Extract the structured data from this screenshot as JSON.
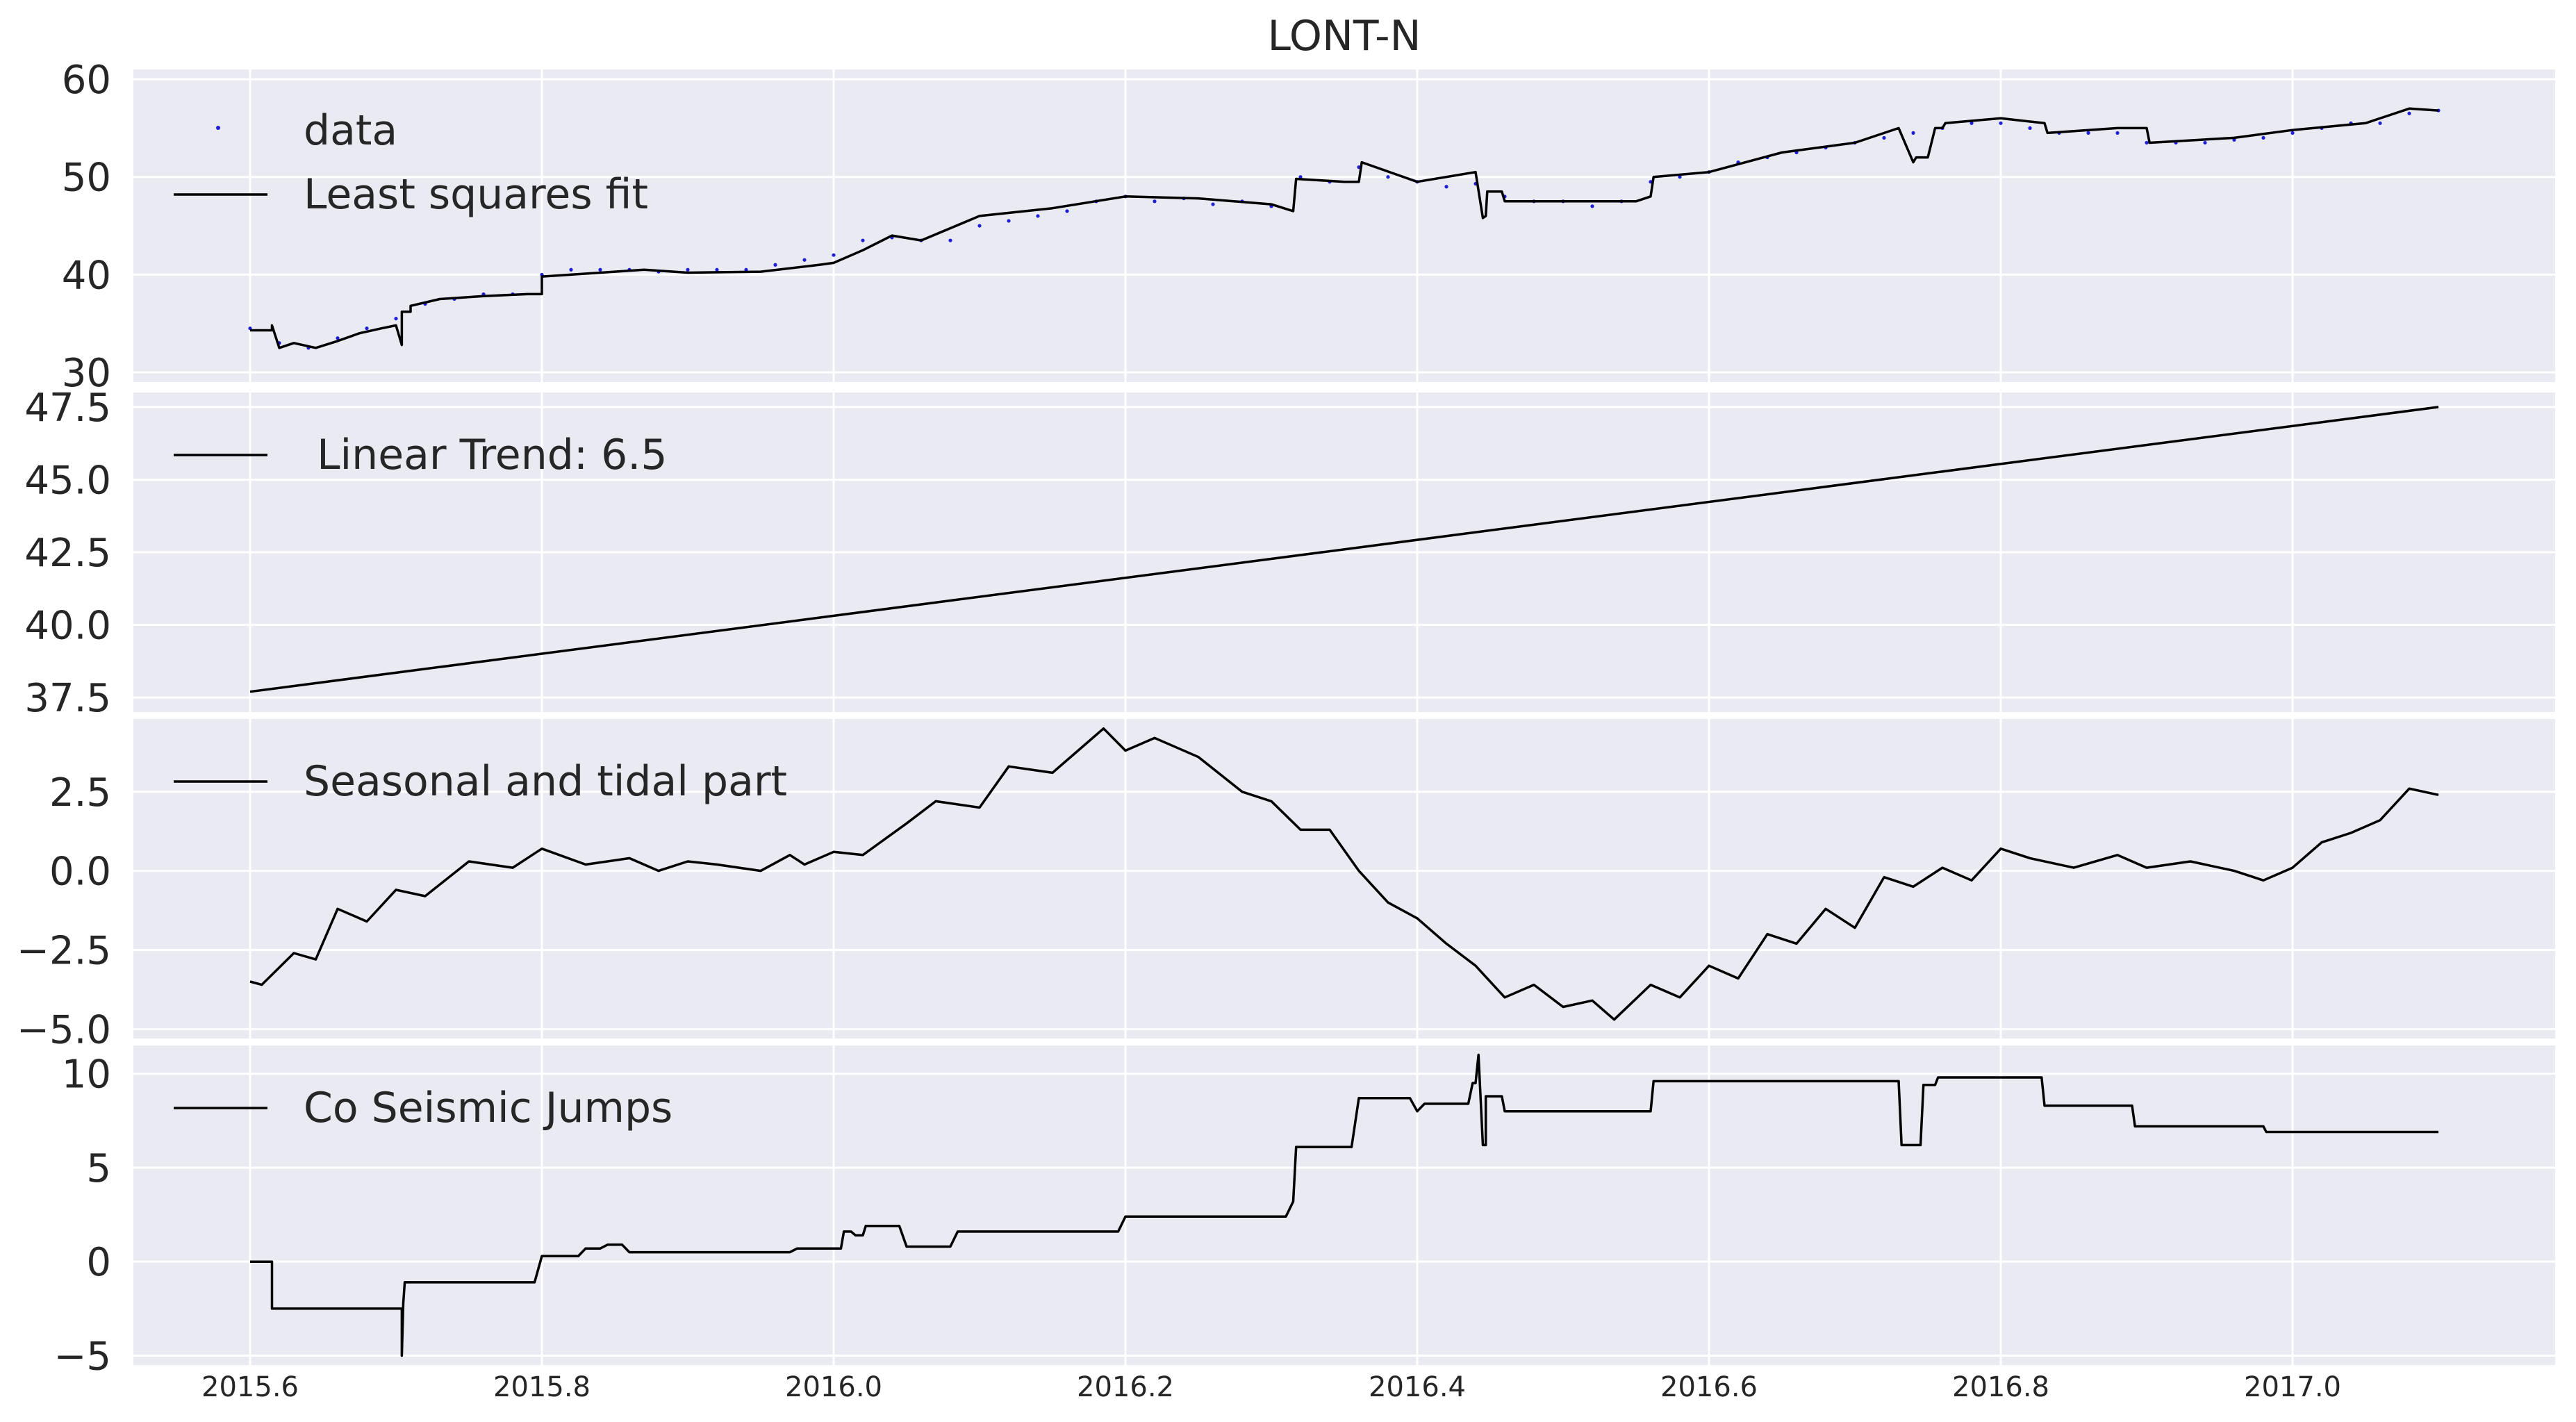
{
  "title": "LONT-N",
  "colors": {
    "panel_bg": "#eaeaf2",
    "grid": "#ffffff",
    "fit_line": "#000000",
    "data_points": "#1f1fd6",
    "text": "#262626"
  },
  "x_axis": {
    "range": [
      2015.52,
      2017.18
    ],
    "ticks": [
      2015.6,
      2015.8,
      2016.0,
      2016.2,
      2016.4,
      2016.6,
      2016.8,
      2017.0
    ],
    "tick_labels": [
      "2015.6",
      "2015.8",
      "2016.0",
      "2016.2",
      "2016.4",
      "2016.6",
      "2016.8",
      "2017.0"
    ]
  },
  "chart_data": [
    {
      "type": "scatter",
      "panel": "data",
      "ylim": [
        29,
        61
      ],
      "yticks": [
        30,
        40,
        50,
        60
      ],
      "ytick_labels": [
        "30",
        "40",
        "50",
        "60"
      ],
      "grid": true,
      "legend_position": "top-left",
      "series": [
        {
          "name": "data",
          "style": "points",
          "color": "#1f1fd6",
          "x": [
            2015.6,
            2015.62,
            2015.64,
            2015.66,
            2015.68,
            2015.7,
            2015.72,
            2015.74,
            2015.76,
            2015.78,
            2015.8,
            2015.82,
            2015.84,
            2015.86,
            2015.88,
            2015.9,
            2015.92,
            2015.94,
            2015.96,
            2015.98,
            2016.0,
            2016.02,
            2016.04,
            2016.06,
            2016.08,
            2016.1,
            2016.12,
            2016.14,
            2016.16,
            2016.18,
            2016.2,
            2016.22,
            2016.24,
            2016.26,
            2016.28,
            2016.3,
            2016.32,
            2016.34,
            2016.36,
            2016.38,
            2016.4,
            2016.42,
            2016.44,
            2016.46,
            2016.48,
            2016.5,
            2016.52,
            2016.54,
            2016.56,
            2016.58,
            2016.6,
            2016.62,
            2016.64,
            2016.66,
            2016.68,
            2016.7,
            2016.72,
            2016.74,
            2016.76,
            2016.78,
            2016.8,
            2016.82,
            2016.84,
            2016.86,
            2016.88,
            2016.9,
            2016.92,
            2016.94,
            2016.96,
            2016.98,
            2017.0,
            2017.02,
            2017.04,
            2017.06,
            2017.08,
            2017.1
          ],
          "y": [
            34.5,
            33,
            32.5,
            33.5,
            34.5,
            35.5,
            37,
            37.5,
            38,
            38,
            40,
            40.5,
            40.5,
            40.5,
            40.3,
            40.5,
            40.5,
            40.5,
            41,
            41.5,
            42,
            43.5,
            43.8,
            43.5,
            43.5,
            45,
            45.5,
            46,
            46.5,
            47.5,
            48,
            47.5,
            47.8,
            47.2,
            47.5,
            47,
            50,
            49.5,
            51,
            50,
            49.5,
            49,
            49.3,
            48,
            47.5,
            47.5,
            47,
            47.5,
            49.5,
            50,
            50.5,
            51.5,
            52,
            52.5,
            53,
            53.5,
            54,
            54.5,
            55,
            55.5,
            55.5,
            55,
            54.5,
            54.5,
            54.5,
            53.5,
            53.5,
            53.5,
            53.8,
            54,
            54.5,
            55,
            55.5,
            55.5,
            56.5,
            56.8
          ]
        },
        {
          "name": "Least squares fit",
          "style": "line",
          "color": "#000000",
          "x": [
            2015.6,
            2015.615,
            2015.615,
            2015.62,
            2015.63,
            2015.645,
            2015.66,
            2015.675,
            2015.69,
            2015.7,
            2015.704,
            2015.704,
            2015.71,
            2015.71,
            2015.73,
            2015.76,
            2015.79,
            2015.8,
            2015.8,
            2015.85,
            2015.87,
            2015.9,
            2015.95,
            2015.99,
            2016.0,
            2016.02,
            2016.04,
            2016.06,
            2016.1,
            2016.15,
            2016.2,
            2016.25,
            2016.3,
            2016.315,
            2016.317,
            2016.35,
            2016.36,
            2016.362,
            2016.4,
            2016.44,
            2016.445,
            2016.447,
            2016.448,
            2016.458,
            2016.46,
            2016.5,
            2016.55,
            2016.56,
            2016.562,
            2016.6,
            2016.65,
            2016.7,
            2016.73,
            2016.74,
            2016.742,
            2016.75,
            2016.755,
            2016.76,
            2016.762,
            2016.8,
            2016.83,
            2016.832,
            2016.88,
            2016.9,
            2016.902,
            2016.96,
            2017.0,
            2017.05,
            2017.08,
            2017.1
          ],
          "y": [
            34.3,
            34.3,
            34.8,
            32.5,
            33,
            32.5,
            33.2,
            34,
            34.5,
            34.8,
            32.8,
            36.2,
            36.2,
            36.8,
            37.5,
            37.8,
            38,
            38,
            39.8,
            40.3,
            40.5,
            40.2,
            40.3,
            41,
            41.2,
            42.5,
            44,
            43.5,
            46,
            46.8,
            48,
            47.8,
            47.2,
            46.5,
            49.8,
            49.5,
            49.5,
            51.5,
            49.5,
            50.5,
            45.8,
            46,
            48.5,
            48.5,
            47.5,
            47.5,
            47.5,
            48,
            50,
            50.5,
            52.5,
            53.5,
            55,
            51.5,
            52,
            52,
            55,
            55,
            55.5,
            56,
            55.5,
            54.5,
            55,
            55,
            53.5,
            54,
            54.8,
            55.5,
            57,
            56.8
          ]
        }
      ]
    },
    {
      "type": "line",
      "panel": "trend",
      "ylim": [
        37,
        48
      ],
      "yticks": [
        37.5,
        40.0,
        42.5,
        45.0,
        47.5
      ],
      "ytick_labels": [
        "37.5",
        "40.0",
        "42.5",
        "45.0",
        "47.5"
      ],
      "grid": true,
      "legend_position": "top-left",
      "series": [
        {
          "name": " Linear Trend: 6.5",
          "x": [
            2015.6,
            2017.1
          ],
          "y": [
            37.7,
            47.5
          ]
        }
      ]
    },
    {
      "type": "line",
      "panel": "seasonal",
      "ylim": [
        -5.3,
        4.8
      ],
      "yticks": [
        -5.0,
        -2.5,
        0.0,
        2.5
      ],
      "ytick_labels": [
        "−5.0",
        "−2.5",
        "0.0",
        "2.5"
      ],
      "grid": true,
      "legend_position": "top-left",
      "series": [
        {
          "name": "Seasonal and tidal part",
          "x": [
            2015.6,
            2015.608,
            2015.63,
            2015.645,
            2015.66,
            2015.68,
            2015.7,
            2015.72,
            2015.75,
            2015.78,
            2015.8,
            2015.83,
            2015.86,
            2015.88,
            2015.9,
            2015.92,
            2015.95,
            2015.97,
            2015.98,
            2016.0,
            2016.02,
            2016.05,
            2016.07,
            2016.1,
            2016.12,
            2016.15,
            2016.17,
            2016.185,
            2016.2,
            2016.22,
            2016.25,
            2016.28,
            2016.3,
            2016.32,
            2016.34,
            2016.36,
            2016.38,
            2016.4,
            2016.42,
            2016.44,
            2016.46,
            2016.48,
            2016.5,
            2016.52,
            2016.535,
            2016.56,
            2016.58,
            2016.6,
            2016.62,
            2016.64,
            2016.66,
            2016.68,
            2016.7,
            2016.72,
            2016.74,
            2016.76,
            2016.78,
            2016.8,
            2016.82,
            2016.85,
            2016.88,
            2016.9,
            2016.93,
            2016.96,
            2016.98,
            2017.0,
            2017.02,
            2017.04,
            2017.06,
            2017.08,
            2017.1
          ],
          "y": [
            -3.5,
            -3.6,
            -2.6,
            -2.8,
            -1.2,
            -1.6,
            -0.6,
            -0.8,
            0.3,
            0.1,
            0.7,
            0.2,
            0.4,
            0.0,
            0.3,
            0.2,
            0.0,
            0.5,
            0.2,
            0.6,
            0.5,
            1.5,
            2.2,
            2.0,
            3.3,
            3.1,
            3.9,
            4.5,
            3.8,
            4.2,
            3.6,
            2.5,
            2.2,
            1.3,
            1.3,
            0.0,
            -1.0,
            -1.5,
            -2.3,
            -3.0,
            -4.0,
            -3.6,
            -4.3,
            -4.1,
            -4.7,
            -3.6,
            -4.0,
            -3.0,
            -3.4,
            -2.0,
            -2.3,
            -1.2,
            -1.8,
            -0.2,
            -0.5,
            0.1,
            -0.3,
            0.7,
            0.4,
            0.1,
            0.5,
            0.1,
            0.3,
            0.0,
            -0.3,
            0.1,
            0.9,
            1.2,
            1.6,
            2.6,
            2.4
          ]
        }
      ]
    },
    {
      "type": "line",
      "panel": "jumps",
      "ylim": [
        -5.5,
        11.5
      ],
      "yticks": [
        -5,
        0,
        5,
        10
      ],
      "ytick_labels": [
        "−5",
        "0",
        "5",
        "10"
      ],
      "grid": true,
      "legend_position": "top-left",
      "series": [
        {
          "name": "Co Seismic Jumps",
          "x": [
            2015.6,
            2015.615,
            2015.615,
            2015.704,
            2015.704,
            2015.705,
            2015.706,
            2015.707,
            2015.71,
            2015.795,
            2015.8,
            2015.825,
            2015.83,
            2015.84,
            2015.845,
            2015.855,
            2015.86,
            2015.97,
            2015.975,
            2016.005,
            2016.007,
            2016.012,
            2016.015,
            2016.02,
            2016.022,
            2016.045,
            2016.05,
            2016.08,
            2016.085,
            2016.195,
            2016.2,
            2016.31,
            2016.315,
            2016.317,
            2016.32,
            2016.355,
            2016.36,
            2016.395,
            2016.4,
            2016.405,
            2016.41,
            2016.435,
            2016.438,
            2016.44,
            2016.442,
            2016.445,
            2016.447,
            2016.447,
            2016.458,
            2016.46,
            2016.468,
            2016.47,
            2016.56,
            2016.562,
            2016.73,
            2016.732,
            2016.745,
            2016.747,
            2016.755,
            2016.757,
            2016.76,
            2016.828,
            2016.83,
            2016.89,
            2016.892,
            2016.98,
            2016.982,
            2017.1
          ],
          "y": [
            0,
            0,
            -2.5,
            -2.5,
            -5,
            -2.2,
            -1.1,
            -1.1,
            -1.1,
            -1.1,
            0.3,
            0.3,
            0.7,
            0.7,
            0.9,
            0.9,
            0.5,
            0.5,
            0.7,
            0.7,
            1.6,
            1.6,
            1.4,
            1.4,
            1.9,
            1.9,
            0.8,
            0.8,
            1.6,
            1.6,
            2.4,
            2.4,
            3.2,
            6.1,
            6.1,
            6.1,
            8.7,
            8.7,
            8.0,
            8.4,
            8.4,
            8.4,
            9.5,
            9.5,
            11.0,
            6.2,
            6.2,
            8.8,
            8.8,
            8.0,
            8.0,
            8.0,
            8.0,
            9.6,
            9.6,
            6.2,
            6.2,
            9.4,
            9.4,
            9.8,
            9.8,
            9.8,
            8.3,
            8.3,
            7.2,
            7.2,
            6.9,
            6.9
          ]
        }
      ]
    }
  ]
}
